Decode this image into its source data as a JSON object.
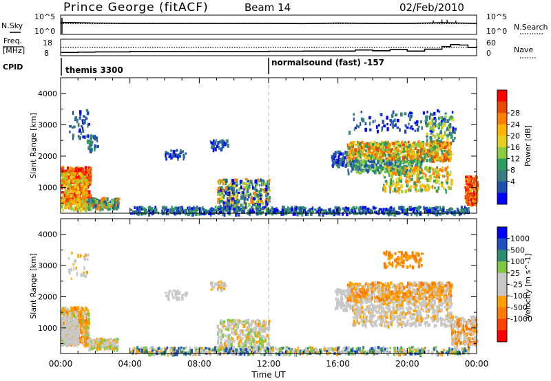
{
  "chart_data": [
    {
      "type": "line",
      "title": "Prince George (fitACF)",
      "beam": "Beam 14",
      "date": "02/Feb/2010",
      "left_label": "N.Sky",
      "right_label": "N.Search",
      "yticks": [
        "10^5",
        "10^0"
      ],
      "series": [
        {
          "name": "N.Sky",
          "x": [
            0,
            1,
            2,
            4,
            6,
            8,
            10,
            12,
            14,
            16,
            18,
            20,
            21,
            22,
            23,
            24
          ],
          "y": [
            3.9,
            3.8,
            3.7,
            3.6,
            3.6,
            3.6,
            3.6,
            3.6,
            3.5,
            3.7,
            3.6,
            3.6,
            3.7,
            3.8,
            3.7,
            3.6
          ]
        },
        {
          "name": "N.Search",
          "x": [
            0,
            24
          ],
          "y": [
            3.5,
            3.5
          ]
        }
      ]
    },
    {
      "type": "line",
      "left_label": "Freq. [MHz]",
      "right_label": "Nave",
      "yticks_left": [
        "18",
        "8"
      ],
      "yticks_right": [
        "60",
        "0"
      ],
      "series": [
        {
          "name": "Freq",
          "x": [
            0,
            1,
            2,
            4,
            6,
            8,
            10,
            12,
            14,
            16,
            17,
            18,
            19,
            20,
            20.5,
            21,
            22,
            22.5,
            23,
            23.5,
            24
          ],
          "y": [
            9.7,
            9.9,
            10.1,
            10.3,
            10.3,
            10.3,
            10.3,
            10.5,
            10.6,
            10.6,
            11.3,
            10.8,
            11.6,
            10.6,
            10.6,
            11.8,
            13.6,
            14.9,
            14.6,
            12.9,
            13.7
          ]
        },
        {
          "name": "Nave",
          "x": [
            0,
            24
          ],
          "y": [
            13.0,
            13.0
          ]
        }
      ]
    },
    {
      "type": "table",
      "label": "CPID",
      "programs": [
        "themis 3300",
        "normalsound (fast) -157"
      ]
    },
    {
      "type": "heatmap",
      "ylabel": "Slant Range [km]",
      "colorbar_label": "Power [dB]",
      "colorbar_ticks": [
        "28",
        "24",
        "20",
        "16",
        "12",
        "8",
        "4"
      ],
      "yticks": [
        "4000",
        "3000",
        "2000",
        "1000"
      ],
      "ylim": [
        180,
        4500
      ],
      "xlim": [
        0,
        24
      ]
    },
    {
      "type": "heatmap",
      "ylabel": "Slant Range [km]",
      "colorbar_label": "Velocity [m s^-1]",
      "colorbar_ticks": [
        "1000",
        "500",
        "100",
        "25",
        "-25",
        "-100",
        "-500",
        "-1000"
      ],
      "yticks": [
        "4000",
        "3000",
        "2000",
        "1000"
      ],
      "ylim": [
        180,
        4500
      ],
      "xlim": [
        0,
        24
      ],
      "xticks": [
        "00:00",
        "04:00",
        "08:00",
        "12:00",
        "16:00",
        "20:00",
        "00:00"
      ],
      "xlabel": "Time UT"
    }
  ]
}
